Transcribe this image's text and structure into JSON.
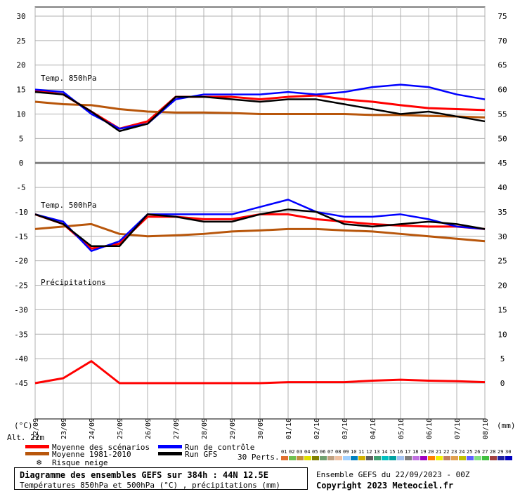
{
  "chart_data": {
    "type": "line",
    "title": "Diagramme des ensembles GEFS sur 384h : 44N 12.5E",
    "subtitle": "Températures 850hPa et 500hPa (°C) , précipitations (mm)",
    "run_label": "Ensemble GEFS du 22/09/2023 - 00Z",
    "copyright": "Copyright 2023 Meteociel.fr",
    "altitude": "Alt. 22m",
    "left_unit": "(°C)",
    "right_unit": "(mm)",
    "left_ticks": [
      "30",
      "25",
      "20",
      "15",
      "10",
      "5",
      "0",
      "-5",
      "-10",
      "-15",
      "-20",
      "-25",
      "-30",
      "-35",
      "-40",
      "-45"
    ],
    "right_ticks": [
      "75",
      "70",
      "65",
      "60",
      "55",
      "50",
      "45",
      "40",
      "35",
      "30",
      "25",
      "20",
      "15",
      "10",
      "5",
      "0"
    ],
    "x_dates": [
      "22/09",
      "23/09",
      "24/09",
      "25/09",
      "26/09",
      "27/09",
      "28/09",
      "29/09",
      "30/09",
      "01/10",
      "02/10",
      "03/10",
      "04/10",
      "05/10",
      "06/10",
      "07/10",
      "08/10"
    ],
    "ylim": [
      -45,
      30
    ],
    "panels": [
      {
        "label": "Temp. 850hPa",
        "offset": 0
      },
      {
        "label": "Temp. 500hPa",
        "offset": 0
      },
      {
        "label": "Précipitations",
        "offset": 0
      }
    ],
    "series": [
      {
        "name": "Moyenne des scénarios (850hPa)",
        "color": "#ff0000",
        "values": [
          14.8,
          14.0,
          10.5,
          7.0,
          8.5,
          13.5,
          13.5,
          13.5,
          13.0,
          13.5,
          13.8,
          13.0,
          12.5,
          11.8,
          11.2,
          11.0,
          10.8
        ]
      },
      {
        "name": "Moyenne 1981-2010 (850hPa)",
        "color": "#b8560b",
        "values": [
          12.5,
          12.0,
          11.8,
          11.0,
          10.5,
          10.3,
          10.3,
          10.2,
          10.0,
          10.0,
          10.0,
          10.0,
          9.8,
          9.8,
          9.6,
          9.5,
          9.3
        ]
      },
      {
        "name": "Run de contrôle (850hPa)",
        "color": "#0000ff",
        "values": [
          15.0,
          14.5,
          10.0,
          7.0,
          8.0,
          13.0,
          14.0,
          14.0,
          14.0,
          14.5,
          14.0,
          14.5,
          15.5,
          16.0,
          15.5,
          14.0,
          13.0
        ]
      },
      {
        "name": "Run GFS (850hPa)",
        "color": "#000000",
        "values": [
          14.5,
          14.0,
          10.5,
          6.5,
          8.0,
          13.5,
          13.5,
          13.0,
          12.5,
          13.0,
          13.0,
          12.0,
          11.0,
          10.0,
          10.5,
          9.5,
          8.5
        ]
      },
      {
        "name": "Moyenne des scénarios (500hPa)",
        "color": "#ff0000",
        "values": [
          -10.5,
          -12.5,
          -17.5,
          -16.5,
          -11.0,
          -11.0,
          -11.5,
          -11.5,
          -10.5,
          -10.5,
          -11.5,
          -12.0,
          -12.5,
          -12.8,
          -13.0,
          -13.0,
          -13.5
        ]
      },
      {
        "name": "Moyenne 1981-2010 (500hPa)",
        "color": "#b8560b",
        "values": [
          -13.5,
          -13.0,
          -12.5,
          -14.5,
          -15.0,
          -14.8,
          -14.5,
          -14.0,
          -13.8,
          -13.5,
          -13.5,
          -13.8,
          -14.0,
          -14.5,
          -15.0,
          -15.5,
          -16.0
        ]
      },
      {
        "name": "Run de contrôle (500hPa)",
        "color": "#0000ff",
        "values": [
          -10.5,
          -12.0,
          -18.0,
          -16.0,
          -10.5,
          -10.5,
          -10.5,
          -10.5,
          -9.0,
          -7.5,
          -10.0,
          -11.0,
          -11.0,
          -10.5,
          -11.5,
          -13.0,
          -13.5
        ]
      },
      {
        "name": "Run GFS (500hPa)",
        "color": "#000000",
        "values": [
          -10.5,
          -12.5,
          -17.0,
          -17.0,
          -10.5,
          -11.0,
          -12.0,
          -12.0,
          -10.5,
          -9.5,
          -10.0,
          -12.5,
          -13.0,
          -12.5,
          -12.0,
          -12.5,
          -13.5
        ]
      },
      {
        "name": "Moyenne des scénarios (précip.)",
        "color": "#ff0000",
        "values": [
          -45.0,
          -44.0,
          -40.5,
          -45.0,
          -45.0,
          -45.0,
          -45.0,
          -45.0,
          -45.0,
          -44.8,
          -44.8,
          -44.8,
          -44.5,
          -44.3,
          -44.5,
          -44.6,
          -44.8
        ]
      }
    ],
    "legend": [
      {
        "label": "Moyenne des scénarios",
        "color": "#ff0000"
      },
      {
        "label": "Moyenne 1981-2010",
        "color": "#b8560b"
      },
      {
        "label": "Run de contrôle",
        "color": "#0000ff"
      },
      {
        "label": "Run GFS",
        "color": "#000000"
      },
      {
        "label": "Risque neige",
        "color": "#3399ff"
      }
    ],
    "perts_label": "30 Perts.",
    "perts": [
      "01",
      "02",
      "03",
      "04",
      "05",
      "06",
      "07",
      "08",
      "09",
      "10",
      "11",
      "12",
      "13",
      "14",
      "15",
      "16",
      "17",
      "18",
      "19",
      "20",
      "21",
      "22",
      "23",
      "24",
      "25",
      "26",
      "27",
      "28",
      "29",
      "30"
    ],
    "pert_colors": [
      "#e07030",
      "#70c050",
      "#c09040",
      "#e0e000",
      "#808000",
      "#70a070",
      "#c0a080",
      "#f0c0a0",
      "#a0d0ff",
      "#0080c0",
      "#d0b000",
      "#606060",
      "#40a070",
      "#00c0c0",
      "#00a0a0",
      "#a0c0f0",
      "#808080",
      "#c070e0",
      "#a000c0",
      "#ff8000",
      "#f0f000",
      "#c08060",
      "#e0a050",
      "#c0c000",
      "#6060ff",
      "#80e080",
      "#40c040",
      "#a04040",
      "#2020a0",
      "#0000c0"
    ]
  }
}
